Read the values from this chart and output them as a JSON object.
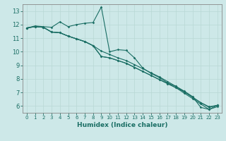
{
  "xlabel": "Humidex (Indice chaleur)",
  "bg_color": "#cde8e8",
  "grid_color": "#b8d8d4",
  "line_color": "#1a6e64",
  "spine_color": "#888888",
  "xlim": [
    -0.5,
    23.5
  ],
  "ylim": [
    5.5,
    13.5
  ],
  "xticks": [
    0,
    1,
    2,
    3,
    4,
    5,
    6,
    7,
    8,
    9,
    10,
    11,
    12,
    13,
    14,
    15,
    16,
    17,
    18,
    19,
    20,
    21,
    22,
    23
  ],
  "yticks": [
    6,
    7,
    8,
    9,
    10,
    11,
    12,
    13
  ],
  "line1_x": [
    0,
    1,
    2,
    3,
    4,
    5,
    6,
    7,
    8,
    9,
    10,
    11,
    12,
    13,
    14,
    15,
    16,
    17,
    18,
    19,
    20,
    21,
    22,
    23
  ],
  "line1_y": [
    11.75,
    11.9,
    11.85,
    11.8,
    12.2,
    11.85,
    12.0,
    12.1,
    12.15,
    13.3,
    10.0,
    10.15,
    10.1,
    9.55,
    8.8,
    8.4,
    8.1,
    7.7,
    7.45,
    7.1,
    6.7,
    5.9,
    5.75,
    6.05
  ],
  "line2_x": [
    0,
    1,
    2,
    3,
    4,
    5,
    6,
    7,
    8,
    9,
    10,
    11,
    12,
    13,
    14,
    15,
    16,
    17,
    18,
    19,
    20,
    21,
    22,
    23
  ],
  "line2_y": [
    11.75,
    11.85,
    11.8,
    11.45,
    11.4,
    11.15,
    10.95,
    10.75,
    10.45,
    10.05,
    9.8,
    9.55,
    9.35,
    9.05,
    8.75,
    8.45,
    8.15,
    7.8,
    7.45,
    7.05,
    6.65,
    6.25,
    5.95,
    6.05
  ],
  "line3_x": [
    0,
    1,
    2,
    3,
    4,
    5,
    6,
    7,
    8,
    9,
    10,
    11,
    12,
    13,
    14,
    15,
    16,
    17,
    18,
    19,
    20,
    21,
    22,
    23
  ],
  "line3_y": [
    11.75,
    11.85,
    11.8,
    11.45,
    11.4,
    11.15,
    10.95,
    10.75,
    10.45,
    9.65,
    9.55,
    9.35,
    9.15,
    8.85,
    8.55,
    8.25,
    7.95,
    7.65,
    7.35,
    7.05,
    6.65,
    6.25,
    5.9,
    6.05
  ],
  "line4_x": [
    0,
    1,
    2,
    3,
    4,
    5,
    6,
    7,
    8,
    9,
    10,
    11,
    12,
    13,
    14,
    15,
    16,
    17,
    18,
    19,
    20,
    21,
    22,
    23
  ],
  "line4_y": [
    11.75,
    11.85,
    11.8,
    11.45,
    11.4,
    11.15,
    10.95,
    10.75,
    10.45,
    9.65,
    9.55,
    9.35,
    9.15,
    8.85,
    8.55,
    8.25,
    7.95,
    7.65,
    7.35,
    6.95,
    6.55,
    6.15,
    5.75,
    5.95
  ]
}
